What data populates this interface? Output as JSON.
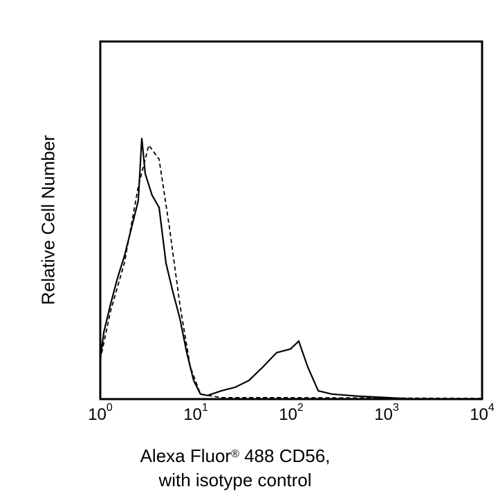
{
  "chart_data": {
    "type": "line",
    "title": "",
    "xlabel_line1": "Alexa Fluor",
    "xlabel_reg": "®",
    "xlabel_line1_rest": " 488 CD56,",
    "xlabel_line2": "with isotype control",
    "ylabel": "Relative Cell Number",
    "xscale": "log",
    "xlim": [
      1,
      10000
    ],
    "ylim": [
      0,
      100
    ],
    "grid": false,
    "x_ticks": [
      {
        "base": "10",
        "exp": "0"
      },
      {
        "base": "10",
        "exp": "1"
      },
      {
        "base": "10",
        "exp": "2"
      },
      {
        "base": "10",
        "exp": "3"
      },
      {
        "base": "10",
        "exp": "4"
      }
    ],
    "series": [
      {
        "style": "solid",
        "color": "#000000",
        "x": [
          1.0,
          1.09,
          1.28,
          1.52,
          1.79,
          2.12,
          2.5,
          2.72,
          2.96,
          3.49,
          4.13,
          4.88,
          5.76,
          6.81,
          8.05,
          9.51,
          11.2,
          13.3,
          18.5,
          25.9,
          36.1,
          50.5,
          70.4,
          98.4,
          120,
          149,
          192,
          268,
          522,
          1016,
          1983
        ],
        "y": [
          11.4,
          18.8,
          26.5,
          34,
          40,
          47.8,
          55.5,
          73,
          63,
          57,
          53.6,
          38,
          30,
          22.6,
          13,
          5.2,
          1.4,
          1,
          2.3,
          3.3,
          5.2,
          9,
          13,
          14,
          16.2,
          9,
          2.3,
          1.4,
          0.8,
          0.4,
          0
        ]
      },
      {
        "style": "dashed",
        "color": "#000000",
        "x": [
          1.0,
          1.28,
          1.79,
          2.5,
          3.22,
          4.13,
          5.31,
          6.81,
          8.75,
          11.2,
          18.5,
          70.4,
          10000
        ],
        "y": [
          11,
          24.6,
          38.1,
          59.4,
          71,
          67.1,
          47.8,
          26.5,
          9.1,
          1.4,
          0.4,
          0.4,
          0.2
        ]
      }
    ]
  }
}
